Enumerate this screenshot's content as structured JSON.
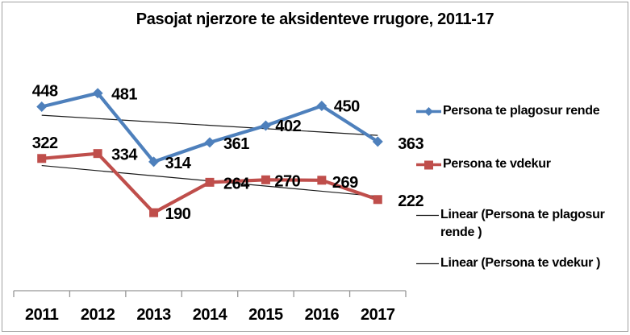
{
  "chart_data": {
    "type": "line",
    "title": "Pasojat njerzore te aksidenteve rrugore, 2011-17",
    "categories": [
      "2011",
      "2012",
      "2013",
      "2014",
      "2015",
      "2016",
      "2017"
    ],
    "series": [
      {
        "name": "Persona te plagosur rende",
        "values": [
          448,
          481,
          314,
          361,
          402,
          450,
          363
        ],
        "color": "#4e80bc",
        "marker": "diamond"
      },
      {
        "name": "Persona te vdekur",
        "values": [
          322,
          334,
          190,
          264,
          270,
          269,
          222
        ],
        "color": "#bf4e4b",
        "marker": "square"
      }
    ],
    "trendlines": [
      {
        "name": "Linear (Persona te plagosur rende )",
        "for_series": 0,
        "color": "#1a1a1a"
      },
      {
        "name": "Linear (Persona te vdekur )",
        "for_series": 1,
        "color": "#1a1a1a"
      }
    ],
    "data_labels_shown": true,
    "ylim": [
      0,
      600
    ],
    "grid": "off",
    "axis_color": "#969696",
    "label_color": "#000000",
    "frame_border_color": "#a0a0a0",
    "legend_position": "right",
    "legend": {
      "entries": [
        {
          "lines": [
            "Persona te plagosur rende"
          ],
          "marker": "line-diamond"
        },
        {
          "lines": [
            "Persona te vdekur"
          ],
          "marker": "line-square"
        },
        {
          "lines": [
            "Linear (Persona te plagosur",
            "rende )"
          ],
          "marker": "line"
        },
        {
          "lines": [
            "Linear (Persona te vdekur )"
          ],
          "marker": "line"
        }
      ]
    }
  }
}
